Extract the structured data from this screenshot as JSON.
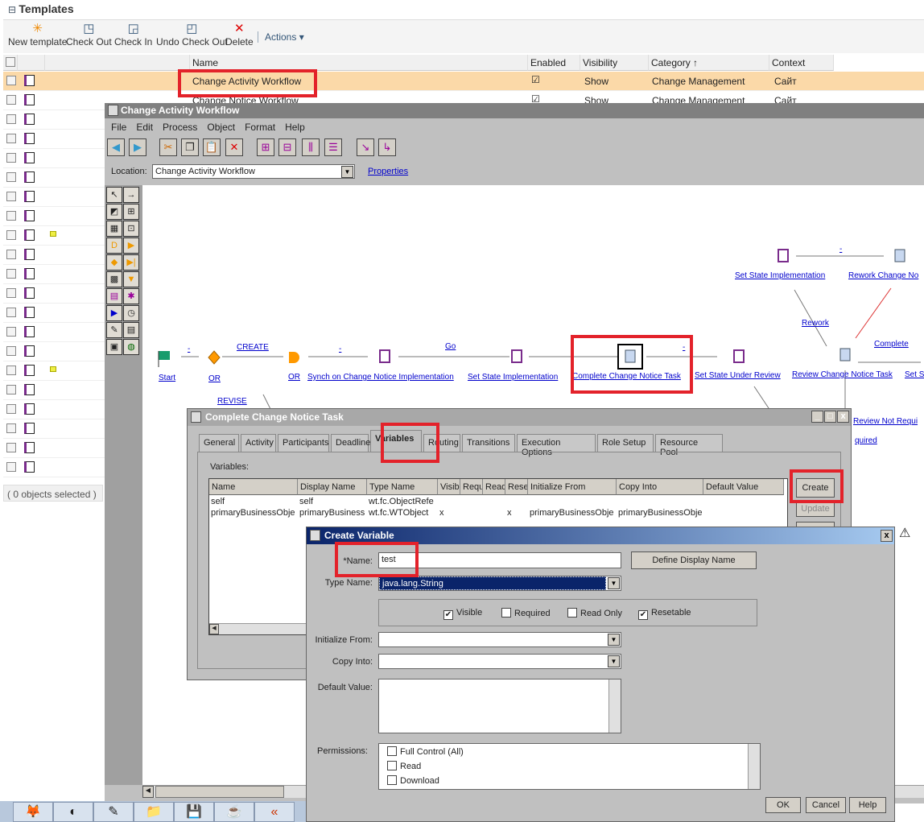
{
  "panel": {
    "title": "Templates",
    "collapse_icon": "minus-box-icon"
  },
  "toolbar": {
    "new_template": "New template",
    "check_out": "Check Out",
    "check_in": "Check In",
    "undo_check_out": "Undo Check Out",
    "delete": "Delete",
    "actions": "Actions"
  },
  "table": {
    "columns": [
      "Name",
      "Enabled",
      "Visibility",
      "Category",
      "Context"
    ],
    "sort_indicator": "↑",
    "rows": [
      {
        "name": "Change Activity Workflow",
        "enabled": true,
        "visibility": "Show",
        "category": "Change Management",
        "context": "Сайт"
      },
      {
        "name": "Change Notice Workflow",
        "enabled": true,
        "visibility": "Show",
        "category": "Change Management",
        "context": "Сайт"
      }
    ],
    "status": "( 0 objects selected )"
  },
  "workflow_window": {
    "title": "Change Activity Workflow",
    "menu": [
      "File",
      "Edit",
      "Process",
      "Object",
      "Format",
      "Help"
    ],
    "location_label": "Location:",
    "location_value": "Change Activity Workflow",
    "properties_link": "Properties"
  },
  "diagram": {
    "nodes": {
      "start": "Start",
      "or1": "OR",
      "or2": "OR",
      "synch": "Synch on Change Notice Implementation",
      "set_impl": "Set State Implementation",
      "complete_task": "Complete Change Notice Task",
      "set_review": "Set State Under Review",
      "review_task": "Review Change Notice Task",
      "set_s": "Set S",
      "set_impl2": "Set State Implementation",
      "rework_task": "Rework Change No",
      "review_not": "Review Not Requi",
      "quired": "quired"
    },
    "edges": {
      "create": "CREATE",
      "revise": "REVISE",
      "go": "Go",
      "rework": "Rework",
      "complete": "Complete",
      "dash": "-"
    }
  },
  "task_dialog": {
    "title": "Complete Change Notice Task",
    "tabs": [
      "General",
      "Activity",
      "Participants",
      "Deadline",
      "Variables",
      "Routing",
      "Transitions",
      "Execution Options",
      "Role Setup",
      "Resource Pool"
    ],
    "active_tab": "Variables",
    "variables_label": "Variables:",
    "columns": [
      "Name",
      "Display Name",
      "Type Name",
      "Visib",
      "Requ",
      "Read",
      "Rese",
      "Initialize From",
      "Copy Into",
      "Default Value"
    ],
    "rows": [
      [
        "self",
        "self",
        "wt.fc.ObjectRefe",
        "",
        "",
        "",
        "",
        "",
        "",
        ""
      ],
      [
        "primaryBusinessObje",
        "primaryBusiness",
        "wt.fc.WTObject",
        "x",
        "",
        "",
        "x",
        "primaryBusinessObje",
        "primaryBusinessObje",
        ""
      ]
    ],
    "create": "Create",
    "update": "Update"
  },
  "create_variable": {
    "title": "Create Variable",
    "name_label": "*Name:",
    "name_value": "test",
    "define_display": "Define Display Name",
    "type_label": "Type Name:",
    "type_value": "java.lang.String",
    "visible": "Visible",
    "required": "Required",
    "read_only": "Read Only",
    "resetable": "Resetable",
    "visible_checked": true,
    "required_checked": false,
    "read_only_checked": false,
    "resetable_checked": true,
    "init_label": "Initialize From:",
    "copy_label": "Copy Into:",
    "default_label": "Default Value:",
    "permissions_label": "Permissions:",
    "permissions": [
      "Full Control (All)",
      "Read",
      "Download"
    ],
    "ok": "OK",
    "cancel": "Cancel",
    "help": "Help"
  },
  "colors": {
    "highlight_row": "#fbd9a8",
    "annotation": "#e3222a",
    "link": "#0000cc"
  }
}
